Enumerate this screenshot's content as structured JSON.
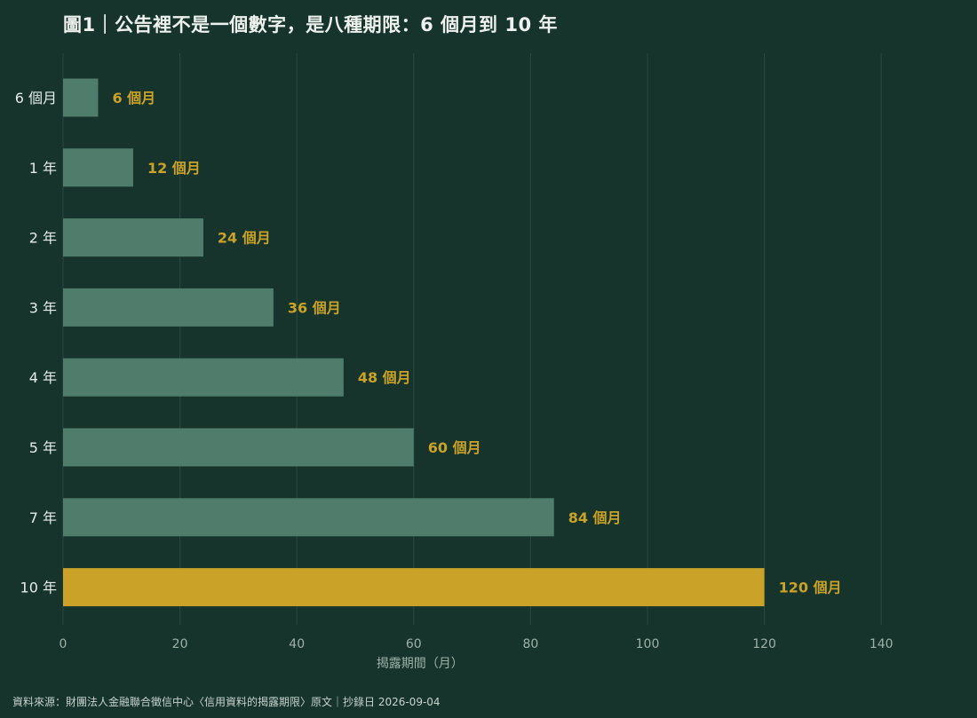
{
  "header": {
    "title": "圖1｜公告裡不是一個數字，是八種期限：6 個月到 10 年"
  },
  "footer": {
    "source": "資料來源：財團法人金融聯合徵信中心〈信用資料的揭露期限〉原文｜抄錄日 2026-09-04"
  },
  "colors": {
    "background": "#16332c",
    "bar": "#4f7c6b",
    "highlight_bar": "#c9a227",
    "label": "#c9a227",
    "grid": "#2a4a40"
  },
  "chart_data": {
    "type": "bar",
    "orientation": "horizontal",
    "categories": [
      "6 個月",
      "1 年",
      "2 年",
      "3 年",
      "4 年",
      "5 年",
      "7 年",
      "10 年"
    ],
    "values": [
      6,
      12,
      24,
      36,
      48,
      60,
      84,
      120
    ],
    "data_labels": [
      "6 個月",
      "12 個月",
      "24 個月",
      "36 個月",
      "48 個月",
      "60 個月",
      "84 個月",
      "120 個月"
    ],
    "highlight_index": 7,
    "xlabel": "揭露期間（月）",
    "ylabel": "",
    "xlim": [
      0,
      150
    ],
    "xticks": [
      0,
      20,
      40,
      60,
      80,
      100,
      120,
      140
    ],
    "grid": "vertical"
  }
}
